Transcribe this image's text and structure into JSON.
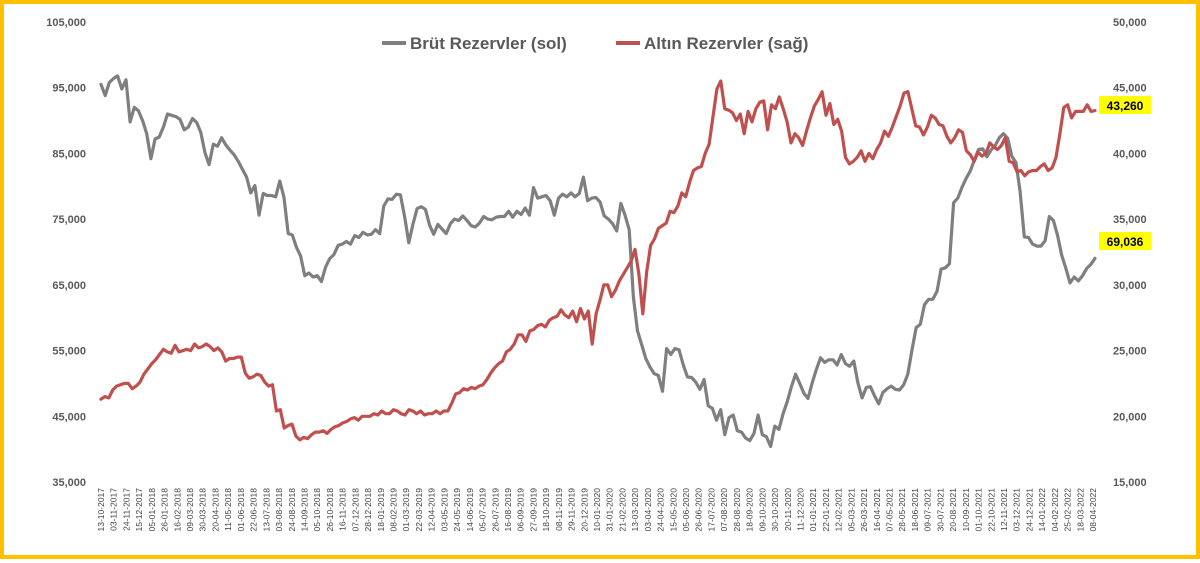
{
  "colors": {
    "frame": "#ffc000",
    "gross": "#7f7f7f",
    "gold": "#c0504d",
    "label_bg": "#ffff00"
  },
  "chart_data": {
    "type": "line",
    "title": "",
    "legend_position": "top-center",
    "grid": false,
    "y_left": {
      "min": 35000,
      "max": 105000,
      "ticks": [
        "35,000",
        "45,000",
        "55,000",
        "65,000",
        "75,000",
        "85,000",
        "95,000",
        "105,000"
      ]
    },
    "y_right": {
      "min": 15000,
      "max": 50000,
      "ticks": [
        "15,000",
        "20,000",
        "25,000",
        "30,000",
        "35,000",
        "40,000",
        "45,000",
        "50,000"
      ]
    },
    "x_labels": [
      "13-10-2017",
      "03-11-2017",
      "24-11-2017",
      "15-12-2017",
      "05-01-2018",
      "26-01-2018",
      "16-02-2018",
      "09-03-2018",
      "30-03-2018",
      "20-04-2018",
      "11-05-2018",
      "01-06-2018",
      "22-06-2018",
      "13-07-2018",
      "03-08-2018",
      "24-08-2018",
      "14-09-2018",
      "05-10-2018",
      "26-10-2018",
      "16-11-2018",
      "07-12-2018",
      "28-12-2018",
      "18-01-2019",
      "08-02-2019",
      "01-03-2019",
      "22-03-2019",
      "12-04-2019",
      "03-05-2019",
      "24-05-2019",
      "14-06-2019",
      "05-07-2019",
      "26-07-2019",
      "16-08-2019",
      "06-09-2019",
      "27-09-2019",
      "18-10-2019",
      "08-11-2019",
      "29-11-2019",
      "20-12-2019",
      "10-01-2020",
      "31-01-2020",
      "21-02-2020",
      "13-03-2020",
      "03-04-2020",
      "24-04-2020",
      "15-05-2020",
      "05-06-2020",
      "26-06-2020",
      "17-07-2020",
      "07-08-2020",
      "28-08-2020",
      "18-09-2020",
      "09-10-2020",
      "30-10-2020",
      "20-11-2020",
      "11-12-2020",
      "01-01-2021",
      "22-01-2021",
      "12-02-2021",
      "05-03-2021",
      "26-03-2021",
      "16-04-2021",
      "07-05-2021",
      "28-05-2021",
      "18-06-2021",
      "09-07-2021",
      "30-07-2021",
      "20-08-2021",
      "10-09-2021",
      "01-10-2021",
      "22-10-2021",
      "12-11-2021",
      "03-12-2021",
      "24-12-2021",
      "14-01-2022",
      "04-02-2022",
      "25-02-2022",
      "18-03-2022",
      "08-04-2022"
    ],
    "series": [
      {
        "name": "Brüt Rezervler (sol)",
        "axis": "left",
        "last_label": "69,036",
        "values": [
          95500,
          93800,
          95800,
          96400,
          96800,
          94800,
          96200,
          89800,
          92000,
          91500,
          90000,
          88000,
          84200,
          87200,
          87500,
          89000,
          91000,
          90800,
          90600,
          90200,
          88600,
          89000,
          90300,
          89700,
          88200,
          85100,
          83300,
          86400,
          86100,
          87400,
          86300,
          85500,
          84800,
          83800,
          82600,
          81400,
          79000,
          80100,
          75600,
          78900,
          78600,
          78600,
          78400,
          80800,
          78300,
          72800,
          72600,
          70700,
          69400,
          66400,
          66800,
          66200,
          66400,
          65500,
          67700,
          69000,
          69600,
          71000,
          71200,
          71600,
          71200,
          72500,
          72200,
          73000,
          72600,
          72700,
          73400,
          72800,
          77000,
          78100,
          78000,
          78800,
          78700,
          75400,
          71400,
          74200,
          76600,
          76900,
          76500,
          74100,
          72700,
          74200,
          73500,
          72800,
          74300,
          75000,
          74800,
          75500,
          74800,
          74000,
          73800,
          74400,
          75400,
          75000,
          74900,
          75300,
          75400,
          75400,
          76200,
          75300,
          76200,
          75700,
          76700,
          75600,
          79800,
          78200,
          78400,
          78600,
          77800,
          75600,
          78200,
          78800,
          78400,
          79000,
          78400,
          78900,
          81400,
          77800,
          78200,
          78300,
          77600,
          75500,
          75000,
          74300,
          73200,
          77400,
          75600,
          73400,
          63100,
          58000,
          55900,
          53800,
          52500,
          51500,
          51200,
          48800,
          55300,
          54400,
          55300,
          55100,
          52800,
          51000,
          50900,
          50200,
          49100,
          50600,
          46600,
          46200,
          44400,
          46000,
          42200,
          44800,
          45200,
          42800,
          42600,
          41700,
          41300,
          42400,
          45200,
          42200,
          41900,
          40400,
          43500,
          43000,
          45400,
          47200,
          49500,
          51400,
          50000,
          48500,
          47700,
          50100,
          52100,
          53900,
          53200,
          53600,
          53600,
          52800,
          54400,
          53000,
          52600,
          53400,
          50100,
          47800,
          49400,
          49500,
          48100,
          46900,
          48600,
          49200,
          49600,
          49100,
          49000,
          49800,
          51400,
          55100,
          58500,
          59000,
          62000,
          62800,
          62800,
          64000,
          67400,
          67600,
          68200,
          77500,
          78200,
          79800,
          81200,
          82300,
          84000,
          85600,
          85700,
          84500,
          85500,
          86200,
          87400,
          88000,
          87300,
          84600,
          83600,
          79200,
          72300,
          72200,
          71200,
          70900,
          70900,
          71700,
          75400,
          74800,
          72500,
          69500,
          67500,
          65300,
          66200,
          65600,
          66400,
          67500,
          68100,
          69036
        ]
      },
      {
        "name": "Altın Rezervler (sağ)",
        "axis": "right",
        "last_label": "43,260",
        "values": [
          21300,
          21500,
          21400,
          22000,
          22300,
          22400,
          22500,
          22500,
          22100,
          22300,
          22600,
          23200,
          23600,
          24000,
          24300,
          24700,
          25100,
          24900,
          24800,
          25400,
          24900,
          25000,
          25100,
          25000,
          25500,
          25200,
          25300,
          25500,
          25300,
          25000,
          25200,
          24900,
          24200,
          24400,
          24400,
          24500,
          24500,
          23300,
          22900,
          23000,
          23200,
          23100,
          22600,
          22300,
          22400,
          20400,
          20500,
          19100,
          19300,
          19400,
          18500,
          18200,
          18400,
          18300,
          18600,
          18800,
          18800,
          18900,
          18700,
          19000,
          19200,
          19300,
          19500,
          19600,
          19800,
          19900,
          19700,
          20000,
          20000,
          20000,
          20200,
          20100,
          20400,
          20200,
          20200,
          20500,
          20400,
          20200,
          20100,
          20500,
          20400,
          20200,
          20400,
          20100,
          20200,
          20200,
          20400,
          20200,
          20400,
          20400,
          21000,
          21700,
          21800,
          22100,
          22000,
          22200,
          22100,
          22300,
          22400,
          22800,
          23300,
          23700,
          24000,
          24200,
          24900,
          25100,
          25500,
          26200,
          26200,
          25700,
          26500,
          26600,
          26900,
          27000,
          26800,
          27300,
          27500,
          27600,
          28100,
          27700,
          27500,
          28000,
          27200,
          28200,
          27400,
          28000,
          25500,
          27800,
          28800,
          30000,
          30000,
          29100,
          29600,
          30300,
          30800,
          31300,
          31800,
          32700,
          30800,
          27800,
          31000,
          33000,
          33500,
          34300,
          34500,
          34700,
          35600,
          35500,
          36000,
          37000,
          36700,
          37800,
          38700,
          38900,
          39000,
          40000,
          40700,
          42800,
          44900,
          45500,
          43400,
          43300,
          43100,
          42500,
          43000,
          41500,
          43200,
          42400,
          43400,
          43900,
          44000,
          41800,
          43700,
          43400,
          44300,
          43400,
          42400,
          40800,
          41500,
          41200,
          40600,
          41700,
          42700,
          43600,
          44100,
          44700,
          42900,
          43800,
          42200,
          42600,
          41700,
          39700,
          39200,
          39400,
          39700,
          40200,
          39400,
          40000,
          39600,
          40300,
          40800,
          41700,
          41300,
          42000,
          42800,
          43600,
          44600,
          44700,
          43400,
          42100,
          42000,
          41400,
          42000,
          42900,
          42700,
          42200,
          42100,
          41300,
          40800,
          41200,
          41800,
          41600,
          40200,
          39900,
          39400,
          40100,
          39800,
          40000,
          40800,
          40500,
          40300,
          40600,
          41200,
          39400,
          39300,
          38600,
          38700,
          38300,
          38600,
          38700,
          38700,
          39000,
          39200,
          38700,
          38900,
          39700,
          41500,
          43500,
          43700,
          42700,
          43200,
          43200,
          43200,
          43700,
          43200,
          43260
        ]
      }
    ]
  }
}
